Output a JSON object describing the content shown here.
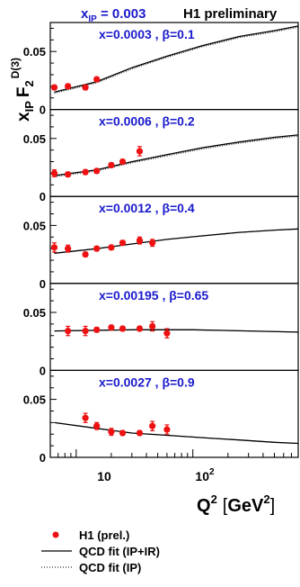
{
  "header": {
    "xip_label": "x",
    "xip_sub": "IP",
    "xip_value": " = 0.003",
    "tag": "H1 preliminary"
  },
  "yaxis": {
    "main": "x",
    "sub": "IP",
    "F": "F",
    "F_sub": "2",
    "F_sup": "D(3)"
  },
  "xaxis": {
    "Q": "Q",
    "Q_sup": "2",
    "unit_open": "[",
    "unit": "GeV",
    "unit_sup": "2",
    "unit_close": "]",
    "tick_10": "10",
    "tick_100_base": "10",
    "tick_100_exp": "2"
  },
  "legend": [
    {
      "label": "H1 (prel.)",
      "kind": "marker"
    },
    {
      "label": "QCD fit (IP+IR)",
      "kind": "solid"
    },
    {
      "label": "QCD fit (IP)",
      "kind": "dotted"
    }
  ],
  "colors": {
    "data": "#ee1111",
    "label": "#1a1acc",
    "axis": "#000000"
  },
  "chart_data": [
    {
      "type": "scatter",
      "label": "x=0.0003 , β=0.1",
      "ylim": [
        0,
        0.075
      ],
      "yticks": [
        "0",
        "0.05"
      ],
      "xlim": [
        6,
        800
      ],
      "log_x": true,
      "points": [
        {
          "q2": 6.5,
          "y": 0.019,
          "err": 0.002
        },
        {
          "q2": 8.5,
          "y": 0.02,
          "err": 0.002
        },
        {
          "q2": 12,
          "y": 0.019,
          "err": 0.002
        },
        {
          "q2": 15,
          "y": 0.026,
          "err": 0.002
        }
      ],
      "fit_ipir": [
        [
          6.5,
          0.015
        ],
        [
          15,
          0.024
        ],
        [
          30,
          0.036
        ],
        [
          60,
          0.046
        ],
        [
          120,
          0.055
        ],
        [
          250,
          0.063
        ],
        [
          500,
          0.068
        ],
        [
          800,
          0.072
        ]
      ],
      "fit_ip": [
        [
          6.5,
          0.014
        ],
        [
          15,
          0.023
        ],
        [
          30,
          0.035
        ],
        [
          60,
          0.045
        ],
        [
          120,
          0.054
        ],
        [
          250,
          0.062
        ],
        [
          500,
          0.067
        ],
        [
          800,
          0.071
        ]
      ]
    },
    {
      "type": "scatter",
      "label": "x=0.0006 , β=0.2",
      "ylim": [
        0,
        0.075
      ],
      "yticks": [
        "0",
        "0.05"
      ],
      "xlim": [
        6,
        800
      ],
      "log_x": true,
      "points": [
        {
          "q2": 6.5,
          "y": 0.02,
          "err": 0.003
        },
        {
          "q2": 8.5,
          "y": 0.019,
          "err": 0.002
        },
        {
          "q2": 12,
          "y": 0.021,
          "err": 0.002
        },
        {
          "q2": 15,
          "y": 0.022,
          "err": 0.002
        },
        {
          "q2": 20,
          "y": 0.027,
          "err": 0.002
        },
        {
          "q2": 25,
          "y": 0.03,
          "err": 0.002
        },
        {
          "q2": 35,
          "y": 0.039,
          "err": 0.004
        }
      ],
      "fit_ipir": [
        [
          6.5,
          0.018
        ],
        [
          15,
          0.023
        ],
        [
          30,
          0.03
        ],
        [
          60,
          0.036
        ],
        [
          120,
          0.042
        ],
        [
          250,
          0.047
        ],
        [
          500,
          0.051
        ],
        [
          800,
          0.053
        ]
      ],
      "fit_ip": [
        [
          6.5,
          0.017
        ],
        [
          15,
          0.022
        ],
        [
          30,
          0.029
        ],
        [
          60,
          0.035
        ],
        [
          120,
          0.041
        ],
        [
          250,
          0.046
        ],
        [
          500,
          0.05
        ],
        [
          800,
          0.052
        ]
      ]
    },
    {
      "type": "scatter",
      "label": "x=0.0012 , β=0.4",
      "ylim": [
        0,
        0.075
      ],
      "yticks": [
        "0",
        "0.05"
      ],
      "xlim": [
        6,
        800
      ],
      "log_x": true,
      "points": [
        {
          "q2": 6.5,
          "y": 0.031,
          "err": 0.004
        },
        {
          "q2": 8.5,
          "y": 0.03,
          "err": 0.003
        },
        {
          "q2": 12,
          "y": 0.025,
          "err": 0.002
        },
        {
          "q2": 15,
          "y": 0.03,
          "err": 0.002
        },
        {
          "q2": 20,
          "y": 0.031,
          "err": 0.002
        },
        {
          "q2": 25,
          "y": 0.035,
          "err": 0.002
        },
        {
          "q2": 35,
          "y": 0.037,
          "err": 0.003
        },
        {
          "q2": 45,
          "y": 0.035,
          "err": 0.003
        }
      ],
      "fit_ipir": [
        [
          6.5,
          0.026
        ],
        [
          15,
          0.03
        ],
        [
          30,
          0.034
        ],
        [
          60,
          0.038
        ],
        [
          120,
          0.041
        ],
        [
          250,
          0.044
        ],
        [
          500,
          0.046
        ],
        [
          800,
          0.047
        ]
      ],
      "fit_ip": [
        [
          6.5,
          0.026
        ],
        [
          15,
          0.03
        ],
        [
          30,
          0.034
        ],
        [
          60,
          0.038
        ],
        [
          120,
          0.041
        ],
        [
          250,
          0.044
        ],
        [
          500,
          0.046
        ],
        [
          800,
          0.047
        ]
      ]
    },
    {
      "type": "scatter",
      "label": "x=0.00195 , β=0.65",
      "ylim": [
        0,
        0.075
      ],
      "yticks": [
        "0",
        "0.05"
      ],
      "xlim": [
        6,
        800
      ],
      "log_x": true,
      "points": [
        {
          "q2": 8.5,
          "y": 0.034,
          "err": 0.004
        },
        {
          "q2": 12,
          "y": 0.034,
          "err": 0.004
        },
        {
          "q2": 15,
          "y": 0.035,
          "err": 0.002
        },
        {
          "q2": 20,
          "y": 0.037,
          "err": 0.002
        },
        {
          "q2": 25,
          "y": 0.036,
          "err": 0.002
        },
        {
          "q2": 35,
          "y": 0.036,
          "err": 0.002
        },
        {
          "q2": 45,
          "y": 0.038,
          "err": 0.004
        },
        {
          "q2": 60,
          "y": 0.032,
          "err": 0.004
        }
      ],
      "fit_ipir": [
        [
          6.5,
          0.034
        ],
        [
          30,
          0.035
        ],
        [
          100,
          0.035
        ],
        [
          300,
          0.034
        ],
        [
          800,
          0.033
        ]
      ],
      "fit_ip": [
        [
          6.5,
          0.034
        ],
        [
          30,
          0.035
        ],
        [
          100,
          0.035
        ],
        [
          300,
          0.034
        ],
        [
          800,
          0.033
        ]
      ]
    },
    {
      "type": "scatter",
      "label": "x=0.0027 , β=0.9",
      "ylim": [
        0,
        0.075
      ],
      "yticks": [
        "0",
        "0.05"
      ],
      "xlim": [
        6,
        800
      ],
      "log_x": true,
      "points": [
        {
          "q2": 12,
          "y": 0.034,
          "err": 0.004
        },
        {
          "q2": 15,
          "y": 0.027,
          "err": 0.003
        },
        {
          "q2": 20,
          "y": 0.022,
          "err": 0.003
        },
        {
          "q2": 25,
          "y": 0.021,
          "err": 0.002
        },
        {
          "q2": 35,
          "y": 0.021,
          "err": 0.002
        },
        {
          "q2": 45,
          "y": 0.027,
          "err": 0.004
        },
        {
          "q2": 60,
          "y": 0.024,
          "err": 0.004
        }
      ],
      "fit_ipir": [
        [
          6.5,
          0.03
        ],
        [
          15,
          0.025
        ],
        [
          30,
          0.021
        ],
        [
          60,
          0.019
        ],
        [
          120,
          0.017
        ],
        [
          250,
          0.015
        ],
        [
          500,
          0.013
        ],
        [
          800,
          0.012
        ]
      ],
      "fit_ip": [
        [
          6.5,
          0.03
        ],
        [
          15,
          0.025
        ],
        [
          30,
          0.021
        ],
        [
          60,
          0.019
        ],
        [
          120,
          0.017
        ],
        [
          250,
          0.015
        ],
        [
          500,
          0.013
        ],
        [
          800,
          0.012
        ]
      ]
    }
  ]
}
